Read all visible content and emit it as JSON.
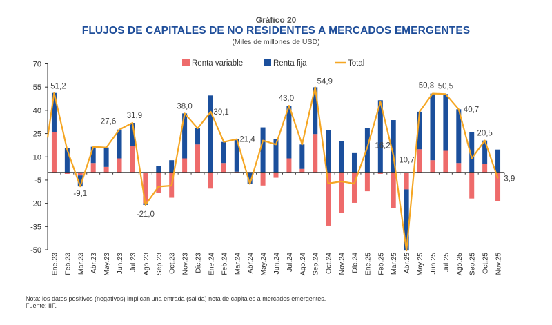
{
  "header": {
    "figure_number": "Gráfico 20",
    "title": "FLUJOS DE CAPITALES DE NO RESIDENTES A MERCADOS EMERGENTES",
    "subtitle": "(Miles de millones de USD)"
  },
  "colors": {
    "renta_variable": "#ee6b6b",
    "renta_fija": "#1b4f9c",
    "total": "#f5a623",
    "axis": "#333333",
    "label": "#444444"
  },
  "footer": {
    "note": "Nota: los datos positivos (negativos) implican una entrada (salida) neta de capitales a mercados emergentes.",
    "source": "Fuente: IIF."
  },
  "chart_data": {
    "type": "bar",
    "stacked": true,
    "title": "FLUJOS DE CAPITALES DE NO RESIDENTES A MERCADOS EMERGENTES",
    "subtitle": "(Miles de millones de USD)",
    "xlabel": "",
    "ylabel": "",
    "ylim": [
      -50,
      70
    ],
    "yticks": [
      70,
      55,
      40,
      25,
      10,
      -5,
      -20,
      -35,
      -50
    ],
    "grid": false,
    "legend_position": "top-center",
    "legend": [
      "Renta variable",
      "Renta fija",
      "Total"
    ],
    "categories": [
      "Ene.23",
      "Feb.23",
      "Mar.23",
      "Abr.23",
      "May.23",
      "Jun.23",
      "Jul.23",
      "Ago.23",
      "Sep.23",
      "Oct.23",
      "Nov.23",
      "Dic.23",
      "Ene.24",
      "Feb.24",
      "Mar.24",
      "Abr.24",
      "May.24",
      "Jun.24",
      "Jul.24",
      "Ago.24",
      "Sep.24",
      "Oct.24",
      "Nov.24",
      "Dic.24",
      "Ene.25",
      "Feb.25",
      "Mar.25",
      "Abr.25",
      "May.25",
      "Jun.25",
      "Jul.25",
      "Ago.25",
      "Sep.25",
      "Oct.25",
      "Nov.25"
    ],
    "series": [
      {
        "name": "Renta variable",
        "kind": "bar",
        "values": [
          26,
          -1,
          -2,
          6,
          3.5,
          9,
          17.2,
          -20,
          -13.4,
          -16.4,
          9,
          18,
          -10.5,
          6,
          0.4,
          0,
          -8.5,
          -3.5,
          9,
          2.2,
          24.7,
          -34.4,
          -26.1,
          -19.7,
          -12.2,
          -1,
          -23,
          -11,
          14.9,
          7.8,
          13.9,
          6,
          -16.9,
          5.5,
          -18.6
        ]
      },
      {
        "name": "Renta fija",
        "kind": "bar",
        "values": [
          25.2,
          15.5,
          -7.1,
          10.5,
          12.5,
          18.6,
          14.7,
          -1,
          4.2,
          7.8,
          29,
          10.4,
          49.6,
          13.6,
          21,
          -7.5,
          29,
          21.5,
          34,
          15.8,
          30.2,
          27.2,
          20.2,
          12.4,
          28.4,
          46.5,
          33.7,
          -39.5,
          24.2,
          43,
          36.6,
          34.7,
          25.9,
          15,
          14.7
        ]
      },
      {
        "name": "Total",
        "kind": "line",
        "start_value": 22.4,
        "values": [
          51.2,
          14.5,
          -9.1,
          16.5,
          16,
          27.6,
          31.9,
          -21.0,
          -9.2,
          -8.6,
          38.0,
          28.4,
          39.1,
          19.6,
          21.4,
          -7.5,
          20.5,
          18,
          43.0,
          18,
          54.9,
          -7.2,
          -5.9,
          -7.3,
          16.2,
          45.5,
          10.7,
          -50.5,
          39.1,
          50.8,
          50.5,
          40.7,
          9.0,
          20.5,
          -3.9
        ]
      }
    ],
    "data_labels": [
      {
        "category": "Ene.23",
        "text": "51,2"
      },
      {
        "category": "Mar.23",
        "text": "-9,1"
      },
      {
        "category": "Jun.23",
        "text": "27,6"
      },
      {
        "category": "Jul.23",
        "text": "31,9"
      },
      {
        "category": "Ago.23",
        "text": "-21,0"
      },
      {
        "category": "Nov.23",
        "text": "38,0"
      },
      {
        "category": "Ene.24",
        "text": "39,1"
      },
      {
        "category": "Mar.24",
        "text": "21,4"
      },
      {
        "category": "Jul.24",
        "text": "43,0"
      },
      {
        "category": "Sep.24",
        "text": "54,9"
      },
      {
        "category": "Ene.25",
        "text": "16,2"
      },
      {
        "category": "Mar.25",
        "text": "10,7"
      },
      {
        "category": "Jun.25",
        "text": "50,8"
      },
      {
        "category": "Jul.25",
        "text": "50,5"
      },
      {
        "category": "Ago.25",
        "text": "40,7"
      },
      {
        "category": "Oct.25",
        "text": "20,5"
      },
      {
        "category": "Nov.25",
        "text": "-3,9"
      }
    ]
  }
}
